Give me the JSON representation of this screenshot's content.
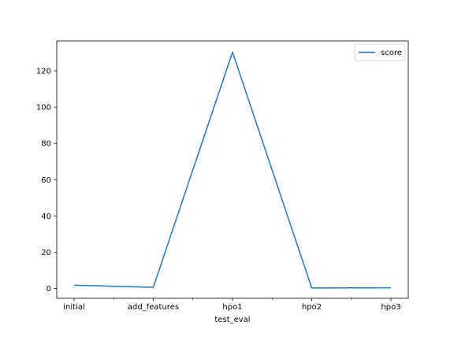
{
  "chart_data": {
    "type": "line",
    "title": "",
    "xlabel": "test_eval",
    "ylabel": "",
    "categories": [
      "initial",
      "add_features",
      "hpo1",
      "hpo2",
      "hpo3"
    ],
    "series": [
      {
        "name": "score",
        "values": [
          1.8,
          0.7,
          130.3,
          0.3,
          0.4
        ],
        "color": "#1f77b4"
      }
    ],
    "ylim": [
      -5.4,
      136.5
    ],
    "yticks": [
      0,
      20,
      40,
      60,
      80,
      100,
      120
    ],
    "xticks_minor": true,
    "grid": false,
    "legend": {
      "position": "top-right"
    }
  }
}
